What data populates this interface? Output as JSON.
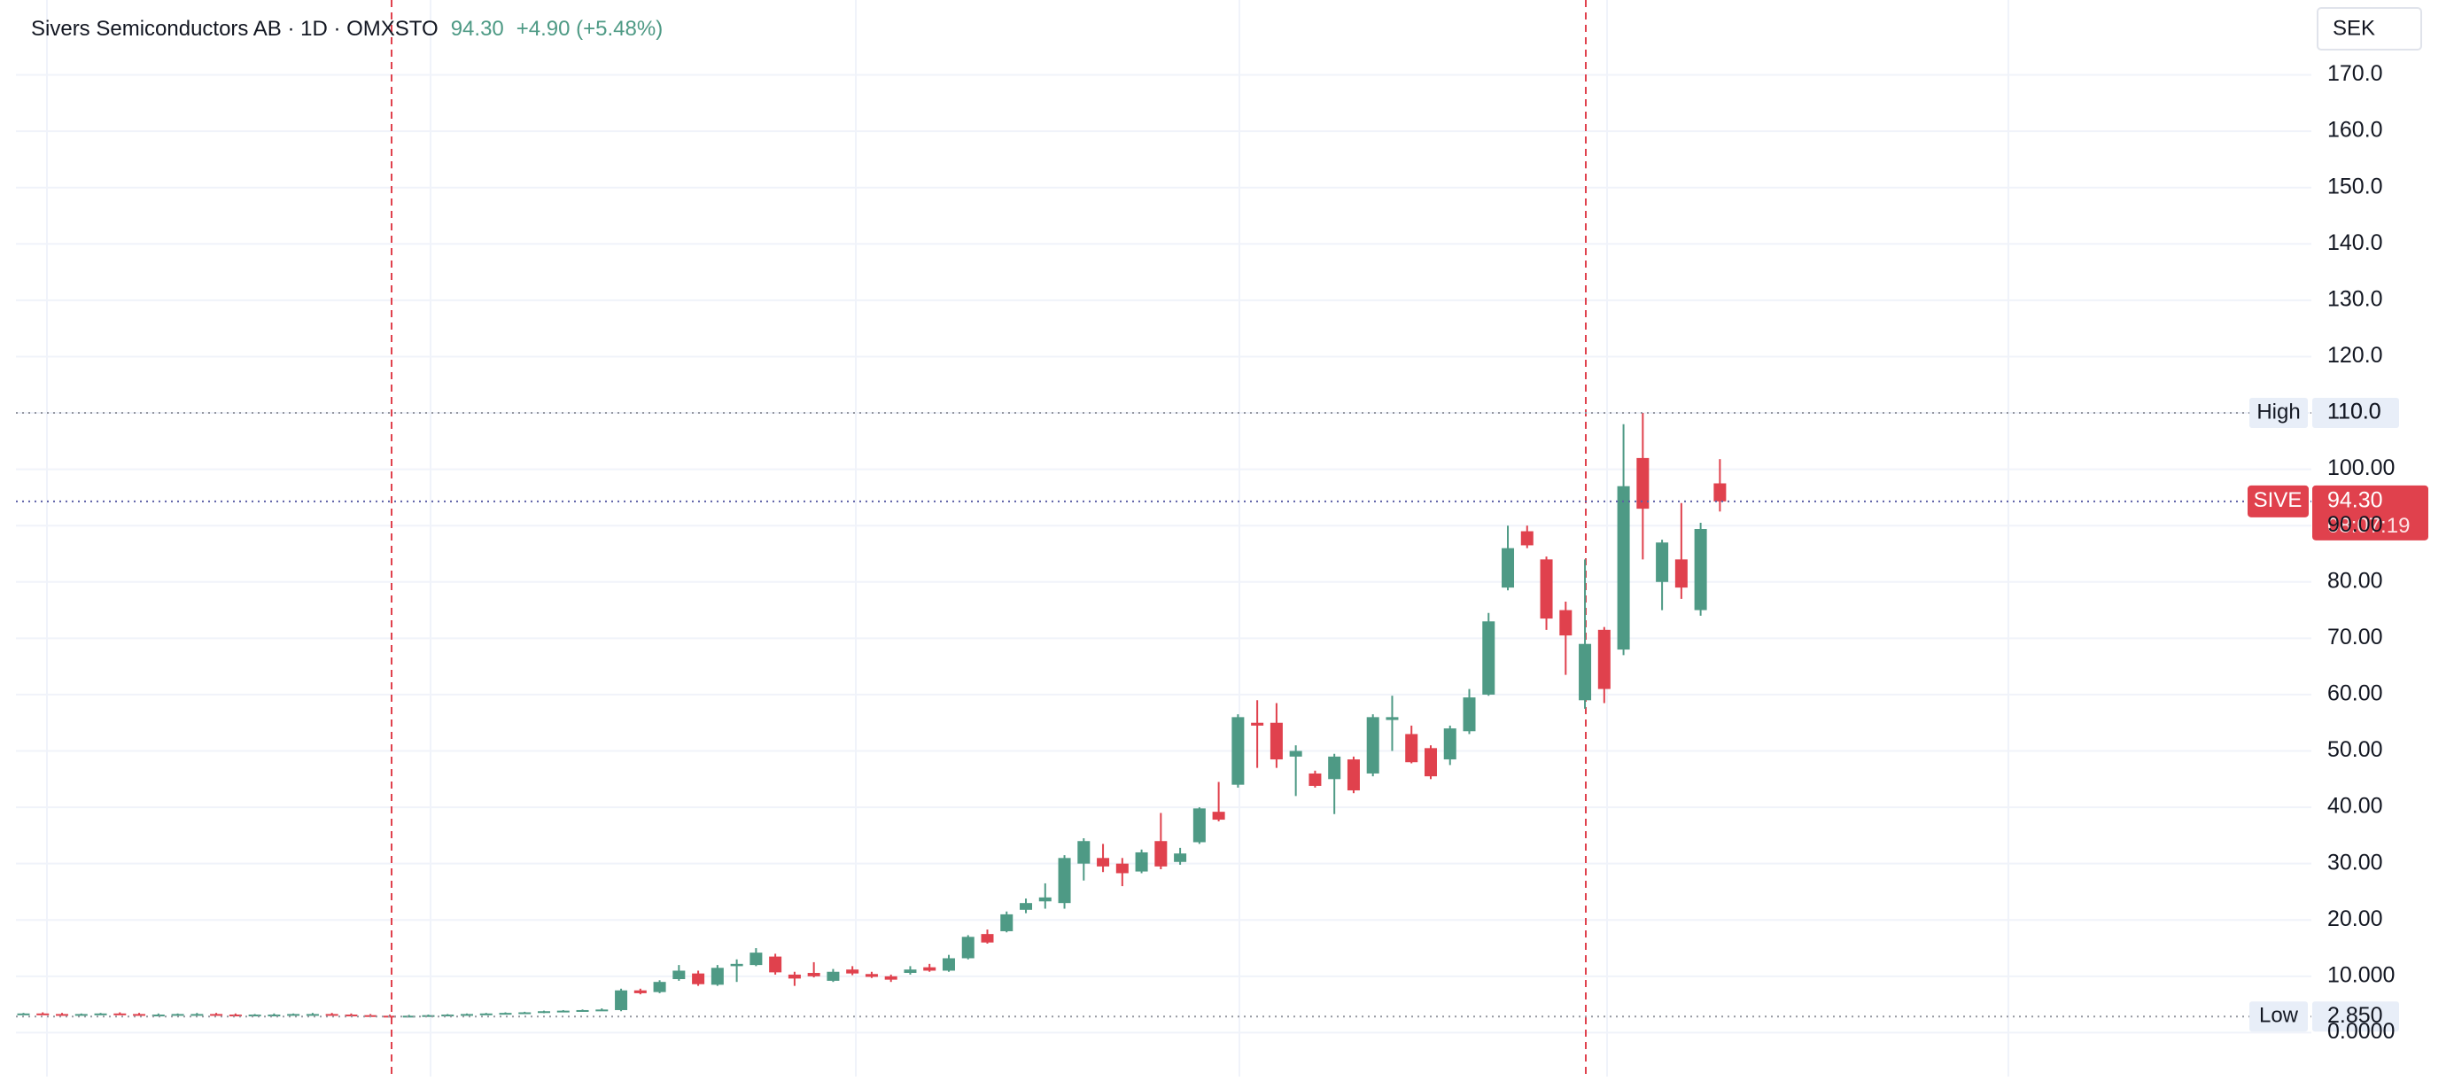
{
  "chart_data": {
    "type": "candlestick",
    "title": "Sivers Semiconductors AB · 1D · OMXSTO",
    "price": "94.30",
    "change": "+4.90 (+5.48%)",
    "currency": "SEK",
    "up_color": "#4e9a85",
    "down_color": "#e0414d",
    "ylim": [
      -7.8,
      183.3
    ],
    "yticks": [
      {
        "value": 0,
        "label": "0.0000"
      },
      {
        "value": 10,
        "label": "10.000"
      },
      {
        "value": 20,
        "label": "20.00"
      },
      {
        "value": 30,
        "label": "30.00"
      },
      {
        "value": 40,
        "label": "40.00"
      },
      {
        "value": 50,
        "label": "50.00"
      },
      {
        "value": 60,
        "label": "60.00"
      },
      {
        "value": 70,
        "label": "70.00"
      },
      {
        "value": 80,
        "label": "80.00"
      },
      {
        "value": 90,
        "label": "90.00"
      },
      {
        "value": 100,
        "label": "100.00"
      },
      {
        "value": 110,
        "label": "110.0"
      },
      {
        "value": 120,
        "label": "120.0"
      },
      {
        "value": 130,
        "label": "130.0"
      },
      {
        "value": 140,
        "label": "140.0"
      },
      {
        "value": 150,
        "label": "150.0"
      },
      {
        "value": 160,
        "label": "160.0"
      },
      {
        "value": 170,
        "label": "170.0"
      }
    ],
    "grid": true,
    "high_marker": {
      "label": "High",
      "value": 110,
      "value_label": "110.0"
    },
    "low_marker": {
      "label": "Low",
      "value": 2.85,
      "value_label": "2.850"
    },
    "last_marker": {
      "symbol": "SIVE",
      "value": 94.3,
      "value_label": "94.30",
      "countdown": "08:07:19"
    },
    "open": [
      3.3,
      3.4,
      3.3,
      3.2,
      3.3,
      3.4,
      3.3,
      3.2,
      3.2,
      3.3,
      3.3,
      3.2,
      3.1,
      3.2,
      3.2,
      3.3,
      3.3,
      3.2,
      3.1,
      3.0,
      2.95,
      3.0,
      3.1,
      3.2,
      3.3,
      3.4,
      3.5,
      3.6,
      3.8,
      3.9,
      4.0,
      4,
      7.5,
      7.2,
      9.5,
      10.5,
      8.5,
      11.8,
      12,
      13.5,
      10.3,
      10.6,
      9.2,
      11.2,
      10.4,
      10,
      10.6,
      11.6,
      11,
      13.2,
      17.5,
      18,
      21.8,
      23.3,
      23,
      30,
      31,
      30,
      28.6,
      34,
      30.3,
      33.8,
      39.2,
      44,
      55,
      55,
      49,
      46,
      45,
      48.5,
      46,
      55.5,
      53,
      50.5,
      48.5,
      53.5,
      60,
      79,
      89,
      84,
      75,
      59,
      71.5,
      68,
      102,
      80,
      84,
      75,
      97.5
    ],
    "high": [
      3.5,
      3.6,
      3.5,
      3.4,
      3.5,
      3.6,
      3.5,
      3.4,
      3.4,
      3.5,
      3.5,
      3.4,
      3.3,
      3.4,
      3.4,
      3.5,
      3.5,
      3.4,
      3.3,
      3.2,
      3.15,
      3.2,
      3.3,
      3.4,
      3.5,
      3.6,
      3.7,
      3.9,
      4.0,
      4.1,
      4.3,
      7.8,
      7.8,
      9.3,
      12,
      11,
      12,
      13,
      15,
      14,
      10.8,
      12.5,
      11.3,
      11.8,
      10.8,
      10.3,
      11.8,
      12.2,
      13.8,
      17.3,
      18.3,
      21.5,
      23.8,
      26.5,
      31.5,
      34.5,
      33.5,
      31,
      32.5,
      39,
      32.8,
      40,
      44.5,
      56.5,
      59,
      58.5,
      51,
      46.5,
      49.5,
      49,
      56.5,
      59.8,
      54.5,
      51,
      54.5,
      61,
      74.5,
      90,
      90,
      84.5,
      76.5,
      84,
      72,
      108,
      110,
      87.5,
      94,
      90.5,
      101.8
    ],
    "low": [
      3.15,
      3.2,
      3.15,
      3.05,
      3.1,
      3.2,
      3.15,
      3.05,
      3.05,
      3.1,
      3.1,
      3.05,
      2.95,
      3.0,
      3.05,
      3.1,
      3.1,
      3.0,
      2.95,
      2.9,
      2.85,
      2.9,
      2.95,
      3.05,
      3.15,
      3.25,
      3.35,
      3.45,
      3.65,
      3.75,
      3.85,
      3.8,
      6.8,
      7,
      9.2,
      8.3,
      8.3,
      9,
      11.8,
      10.3,
      8.3,
      9.8,
      9,
      10.2,
      9.7,
      9,
      10.3,
      10.8,
      10.8,
      13,
      15.8,
      17.8,
      21.2,
      22,
      22,
      27,
      28.5,
      26,
      28.3,
      29,
      29.8,
      33.5,
      37.5,
      43.5,
      47,
      47,
      42,
      43.5,
      38.8,
      42.5,
      45.5,
      50,
      47.8,
      45,
      47.5,
      53,
      59.8,
      78.5,
      86,
      71.5,
      63.5,
      57.5,
      58.5,
      67,
      84,
      75,
      77,
      74,
      92.5
    ],
    "close": [
      3.4,
      3.3,
      3.2,
      3.3,
      3.4,
      3.3,
      3.2,
      3.2,
      3.3,
      3.3,
      3.2,
      3.1,
      3.2,
      3.2,
      3.3,
      3.3,
      3.2,
      3.1,
      3.0,
      2.95,
      3.0,
      3.1,
      3.2,
      3.3,
      3.4,
      3.5,
      3.6,
      3.8,
      3.9,
      4.0,
      4.1,
      7.5,
      7.0,
      9,
      11,
      8.6,
      11.5,
      12.2,
      14.2,
      10.7,
      9.6,
      10,
      10.8,
      10.5,
      9.9,
      9.4,
      11.2,
      11,
      13.2,
      17,
      16,
      21,
      23,
      24,
      31,
      34,
      29.5,
      28.3,
      32,
      29.5,
      31.8,
      39.8,
      37.8,
      56,
      54.5,
      48.5,
      50,
      43.8,
      49,
      43,
      56,
      56,
      48,
      45.5,
      54,
      59.5,
      73,
      86,
      86.5,
      73.5,
      70.5,
      69,
      61,
      97,
      93,
      87,
      79,
      89.4,
      94.3
    ]
  }
}
